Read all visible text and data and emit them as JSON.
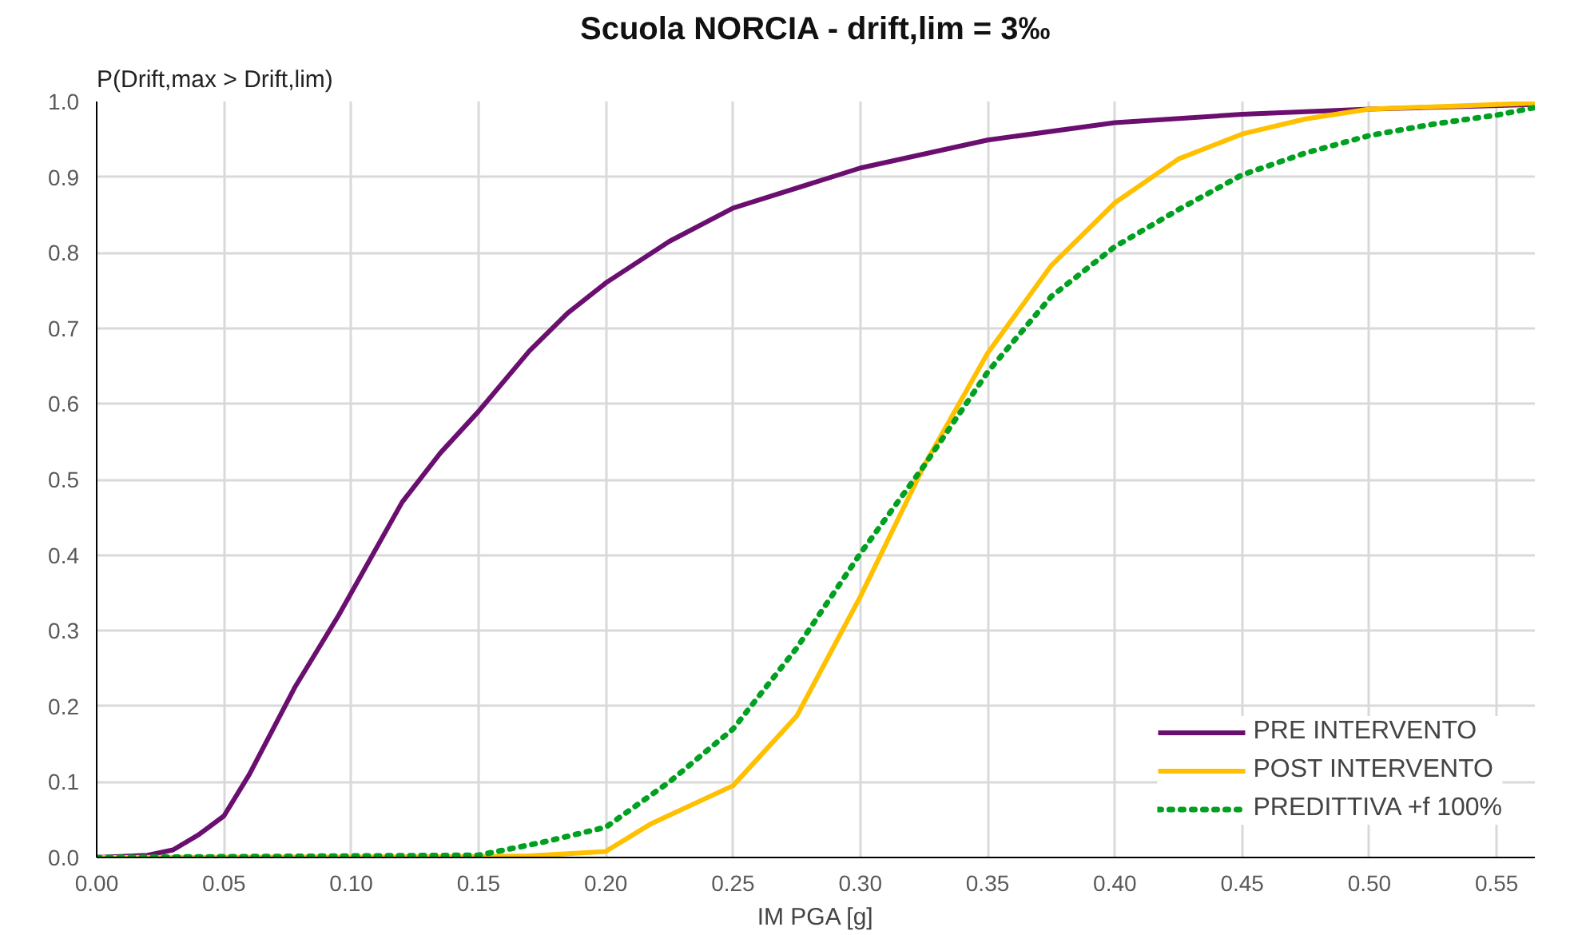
{
  "chart_data": {
    "type": "line",
    "title": "Scuola NORCIA - drift,lim = 3‰",
    "ylabel": "P(Drift,max > Drift,lim)",
    "xlabel": "IM PGA [g]",
    "xlim": [
      0,
      0.565
    ],
    "ylim": [
      0,
      1.0
    ],
    "xticks": [
      {
        "value": 0,
        "label": "0.00"
      },
      {
        "value": 0.05,
        "label": "0.05"
      },
      {
        "value": 0.1,
        "label": "0.10"
      },
      {
        "value": 0.15,
        "label": "0.15"
      },
      {
        "value": 0.2,
        "label": "0.20"
      },
      {
        "value": 0.25,
        "label": "0.25"
      },
      {
        "value": 0.3,
        "label": "0.30"
      },
      {
        "value": 0.35,
        "label": "0.35"
      },
      {
        "value": 0.4,
        "label": "0.40"
      },
      {
        "value": 0.45,
        "label": "0.45"
      },
      {
        "value": 0.5,
        "label": "0.50"
      },
      {
        "value": 0.55,
        "label": "0.55"
      }
    ],
    "yticks": [
      {
        "value": 0,
        "label": "0.0"
      },
      0.1,
      0.2,
      0.3,
      0.4,
      0.5,
      0.6,
      0.7,
      0.8,
      0.9,
      {
        "value": 1,
        "label": "1.0"
      }
    ],
    "grid": true,
    "legend": "bottom right",
    "series": [
      {
        "name": "PRE INTERVENTO",
        "color": "#6a0f70",
        "line_style": "solid",
        "x": [
          0,
          0.02,
          0.03,
          0.04,
          0.05,
          0.06,
          0.078,
          0.095,
          0.12,
          0.135,
          0.15,
          0.17,
          0.185,
          0.2,
          0.225,
          0.25,
          0.3,
          0.35,
          0.4,
          0.45,
          0.5,
          0.565
        ],
        "values": [
          0,
          0.003,
          0.01,
          0.03,
          0.055,
          0.11,
          0.226,
          0.32,
          0.47,
          0.535,
          0.59,
          0.67,
          0.72,
          0.76,
          0.815,
          0.859,
          0.912,
          0.949,
          0.972,
          0.983,
          0.99,
          0.996
        ]
      },
      {
        "name": "POST INTERVENTO",
        "color": "#ffc000",
        "line_style": "solid",
        "x": [
          0,
          0.15,
          0.17,
          0.2,
          0.218,
          0.25,
          0.275,
          0.3,
          0.325,
          0.35,
          0.375,
          0.4,
          0.425,
          0.45,
          0.475,
          0.5,
          0.55,
          0.565
        ],
        "values": [
          0,
          0.001,
          0.002,
          0.008,
          0.045,
          0.095,
          0.187,
          0.345,
          0.518,
          0.667,
          0.783,
          0.866,
          0.924,
          0.957,
          0.977,
          0.99,
          0.996,
          0.998
        ]
      },
      {
        "name": "PREDITTIVA +f 100%",
        "color": "#00a020",
        "line_style": "dotted",
        "x": [
          0,
          0.15,
          0.175,
          0.2,
          0.225,
          0.25,
          0.275,
          0.3,
          0.325,
          0.35,
          0.375,
          0.4,
          0.425,
          0.45,
          0.475,
          0.5,
          0.525,
          0.55,
          0.565
        ],
        "values": [
          0,
          0.003,
          0.02,
          0.04,
          0.1,
          0.17,
          0.277,
          0.402,
          0.518,
          0.642,
          0.742,
          0.808,
          0.857,
          0.903,
          0.932,
          0.955,
          0.97,
          0.982,
          0.992
        ]
      }
    ]
  }
}
